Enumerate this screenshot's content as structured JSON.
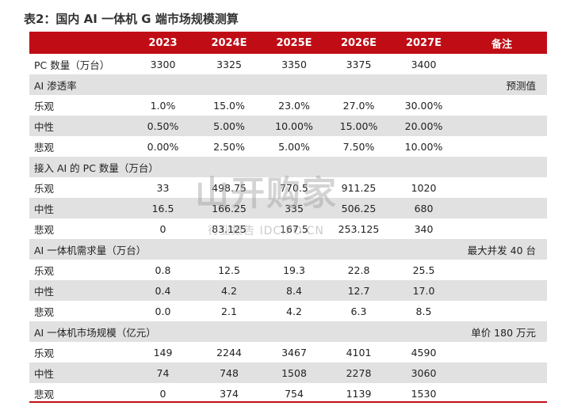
{
  "title": "表2：国内 AI 一体机 G 端市场规模测算",
  "header": {
    "blank": "",
    "years": [
      "2023",
      "2024E",
      "2025E",
      "2026E",
      "2027E"
    ],
    "note": "备注"
  },
  "rows": [
    {
      "label": "PC 数量（万台）",
      "values": [
        "3300",
        "3325",
        "3350",
        "3375",
        "3400"
      ],
      "note": "",
      "shade": false
    },
    {
      "label": "AI 渗透率",
      "values": [
        "",
        "",
        "",
        "",
        ""
      ],
      "note": "预测值",
      "shade": true
    },
    {
      "label": "乐观",
      "values": [
        "1.0%",
        "15.0%",
        "23.0%",
        "27.0%",
        "30.00%"
      ],
      "note": "",
      "shade": false
    },
    {
      "label": "中性",
      "values": [
        "0.50%",
        "5.00%",
        "10.00%",
        "15.00%",
        "20.00%"
      ],
      "note": "",
      "shade": true
    },
    {
      "label": "悲观",
      "values": [
        "0.00%",
        "2.50%",
        "5.00%",
        "7.50%",
        "10.00%"
      ],
      "note": "",
      "shade": false
    },
    {
      "label": "接入 AI 的 PC 数量（万台）",
      "values": [
        "",
        "",
        "",
        "",
        ""
      ],
      "note": "",
      "shade": true
    },
    {
      "label": "乐观",
      "values": [
        "33",
        "498.75",
        "770.5",
        "911.25",
        "1020"
      ],
      "note": "",
      "shade": false
    },
    {
      "label": "中性",
      "values": [
        "16.5",
        "166.25",
        "335",
        "506.25",
        "680"
      ],
      "note": "",
      "shade": true
    },
    {
      "label": "悲观",
      "values": [
        "0",
        "83.125",
        "167.5",
        "253.125",
        "340"
      ],
      "note": "",
      "shade": false
    },
    {
      "label": "AI 一体机需求量（万台）",
      "values": [
        "",
        "",
        "",
        "",
        ""
      ],
      "note": "最大并发 40 台",
      "shade": true
    },
    {
      "label": "乐观",
      "values": [
        "0.8",
        "12.5",
        "19.3",
        "22.8",
        "25.5"
      ],
      "note": "",
      "shade": false
    },
    {
      "label": "中性",
      "values": [
        "0.4",
        "4.2",
        "8.4",
        "12.7",
        "17.0"
      ],
      "note": "",
      "shade": true
    },
    {
      "label": "悲观",
      "values": [
        "0.0",
        "2.1",
        "4.2",
        "6.3",
        "8.5"
      ],
      "note": "",
      "shade": false
    },
    {
      "label": "AI 一体机市场规模（亿元）",
      "values": [
        "",
        "",
        "",
        "",
        ""
      ],
      "note": "单价 180 万元",
      "shade": true
    },
    {
      "label": "乐观",
      "values": [
        "149",
        "2244",
        "3467",
        "4101",
        "4590"
      ],
      "note": "",
      "shade": false
    },
    {
      "label": "中性",
      "values": [
        "74",
        "748",
        "1508",
        "2278",
        "3060"
      ],
      "note": "",
      "shade": true
    },
    {
      "label": "悲观",
      "values": [
        "0",
        "374",
        "754",
        "1139",
        "1530"
      ],
      "note": "",
      "shade": false
    }
  ],
  "watermark": {
    "main": "山开购家",
    "sub": "行业报告 IDCIPO.CN"
  },
  "colors": {
    "header_bg": "#c00d15",
    "shade_bg": "#e1e1e1"
  }
}
